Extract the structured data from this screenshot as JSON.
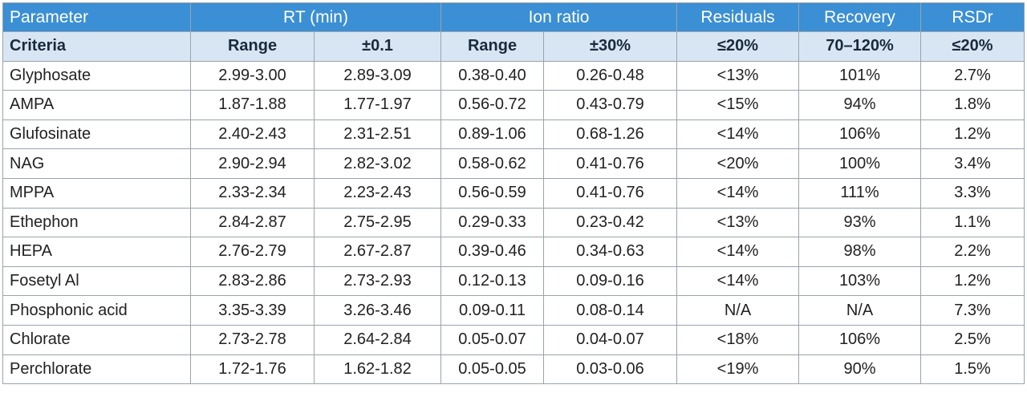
{
  "header": {
    "parameter": "Parameter",
    "rt": "RT (min)",
    "ion_ratio": "Ion ratio",
    "residuals": "Residuals",
    "recovery": "Recovery",
    "rsdr": "RSDr"
  },
  "criteria": {
    "label": "Criteria",
    "rt_range": "Range",
    "rt_tol": "±0.1",
    "ion_range": "Range",
    "ion_tol": "±30%",
    "residuals": "≤20%",
    "recovery": "70–120%",
    "rsdr": "≤20%"
  },
  "rows": [
    {
      "name": "Glyphosate",
      "rt_range": "2.99-3.00",
      "rt_tol": "2.89-3.09",
      "ion_range": "0.38-0.40",
      "ion_tol": "0.26-0.48",
      "residuals": "<13%",
      "recovery": "101%",
      "rsdr": "2.7%"
    },
    {
      "name": "AMPA",
      "rt_range": "1.87-1.88",
      "rt_tol": "1.77-1.97",
      "ion_range": "0.56-0.72",
      "ion_tol": "0.43-0.79",
      "residuals": "<15%",
      "recovery": "94%",
      "rsdr": "1.8%"
    },
    {
      "name": "Glufosinate",
      "rt_range": "2.40-2.43",
      "rt_tol": "2.31-2.51",
      "ion_range": "0.89-1.06",
      "ion_tol": "0.68-1.26",
      "residuals": "<14%",
      "recovery": "106%",
      "rsdr": "1.2%"
    },
    {
      "name": "NAG",
      "rt_range": "2.90-2.94",
      "rt_tol": "2.82-3.02",
      "ion_range": "0.58-0.62",
      "ion_tol": "0.41-0.76",
      "residuals": "<20%",
      "recovery": "100%",
      "rsdr": "3.4%"
    },
    {
      "name": "MPPA",
      "rt_range": "2.33-2.34",
      "rt_tol": "2.23-2.43",
      "ion_range": "0.56-0.59",
      "ion_tol": "0.41-0.76",
      "residuals": "<14%",
      "recovery": "111%",
      "rsdr": "3.3%"
    },
    {
      "name": "Ethephon",
      "rt_range": "2.84-2.87",
      "rt_tol": "2.75-2.95",
      "ion_range": "0.29-0.33",
      "ion_tol": "0.23-0.42",
      "residuals": "<13%",
      "recovery": "93%",
      "rsdr": "1.1%"
    },
    {
      "name": "HEPA",
      "rt_range": "2.76-2.79",
      "rt_tol": "2.67-2.87",
      "ion_range": "0.39-0.46",
      "ion_tol": "0.34-0.63",
      "residuals": "<14%",
      "recovery": "98%",
      "rsdr": "2.2%"
    },
    {
      "name": "Fosetyl Al",
      "rt_range": "2.83-2.86",
      "rt_tol": "2.73-2.93",
      "ion_range": "0.12-0.13",
      "ion_tol": "0.09-0.16",
      "residuals": "<14%",
      "recovery": "103%",
      "rsdr": "1.2%"
    },
    {
      "name": "Phosphonic acid",
      "rt_range": "3.35-3.39",
      "rt_tol": "3.26-3.46",
      "ion_range": "0.09-0.11",
      "ion_tol": "0.08-0.14",
      "residuals": "N/A",
      "recovery": "N/A",
      "rsdr": "7.3%"
    },
    {
      "name": "Chlorate",
      "rt_range": "2.73-2.78",
      "rt_tol": "2.64-2.84",
      "ion_range": "0.05-0.07",
      "ion_tol": "0.04-0.07",
      "residuals": "<18%",
      "recovery": "106%",
      "rsdr": "2.5%"
    },
    {
      "name": "Perchlorate",
      "rt_range": "1.72-1.76",
      "rt_tol": "1.62-1.82",
      "ion_range": "0.05-0.05",
      "ion_tol": "0.03-0.06",
      "residuals": "<19%",
      "recovery": "90%",
      "rsdr": "1.5%"
    }
  ]
}
